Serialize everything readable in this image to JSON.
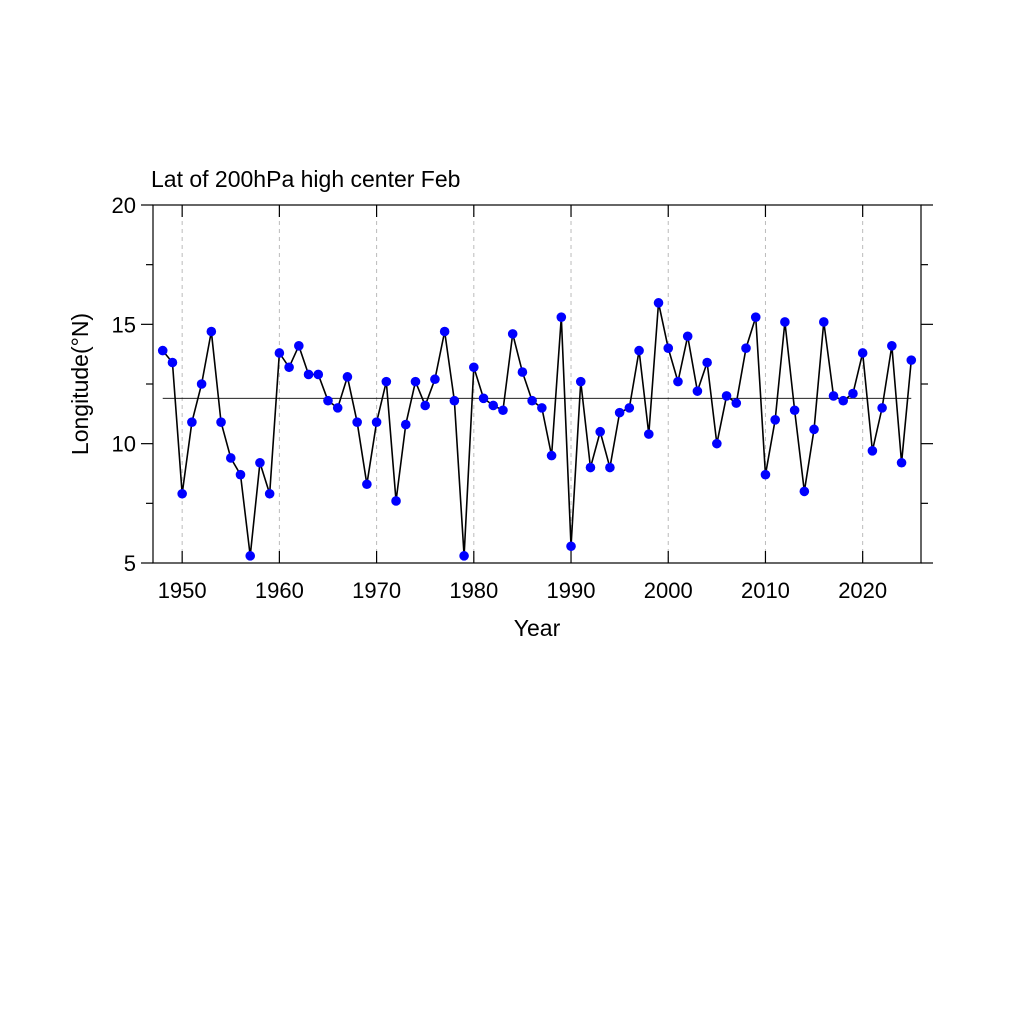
{
  "chart_data": {
    "type": "line",
    "title": "Lat of 200hPa high center Feb",
    "xlabel": "Year",
    "ylabel": "Longitude(°N)",
    "xlim": [
      1947,
      2026
    ],
    "ylim": [
      5,
      20
    ],
    "x_ticks": [
      1950,
      1960,
      1970,
      1980,
      1990,
      2000,
      2010,
      2020
    ],
    "y_ticks": [
      5,
      10,
      15,
      20
    ],
    "y_minor_ticks": [
      7.5,
      12.5,
      17.5
    ],
    "grid": "vertical dashed at x ticks",
    "reference_line": 11.9,
    "line_color": "#000000",
    "marker_color": "#0000ff",
    "series": [
      {
        "x": [
          1948,
          1949,
          1950,
          1951,
          1952,
          1953,
          1954,
          1955,
          1956,
          1957,
          1958,
          1959,
          1960,
          1961,
          1962,
          1963,
          1964,
          1965,
          1966,
          1967,
          1968,
          1969,
          1970,
          1971,
          1972,
          1973,
          1974,
          1975,
          1976,
          1977,
          1978,
          1979,
          1980,
          1981,
          1982,
          1983,
          1984,
          1985,
          1986,
          1987,
          1988,
          1989,
          1990,
          1991,
          1992,
          1993,
          1994,
          1995,
          1996,
          1997,
          1998,
          1999,
          2000,
          2001,
          2002,
          2003,
          2004,
          2005,
          2006,
          2007,
          2008,
          2009,
          2010,
          2011,
          2012,
          2013,
          2014,
          2015,
          2016,
          2017,
          2018,
          2019,
          2020,
          2021,
          2022,
          2023,
          2024,
          2025
        ],
        "values": [
          13.9,
          13.4,
          7.9,
          10.9,
          12.5,
          14.7,
          10.9,
          9.4,
          8.7,
          5.3,
          9.2,
          7.9,
          13.8,
          13.2,
          14.1,
          12.9,
          12.9,
          11.8,
          11.5,
          12.8,
          10.9,
          8.3,
          10.9,
          12.6,
          7.6,
          10.8,
          12.6,
          11.6,
          12.7,
          14.7,
          11.8,
          5.3,
          13.2,
          11.9,
          11.6,
          11.4,
          14.6,
          13.0,
          11.8,
          11.5,
          9.5,
          15.3,
          5.7,
          12.6,
          9.0,
          10.5,
          9.0,
          11.3,
          11.5,
          13.9,
          10.4,
          15.9,
          14.0,
          12.6,
          14.5,
          12.2,
          13.4,
          10.0,
          12.0,
          11.7,
          14.0,
          15.3,
          8.7,
          11.0,
          15.1,
          11.4,
          8.0,
          10.6,
          15.1,
          12.0,
          11.8,
          12.1,
          13.8,
          9.7,
          11.5,
          14.1,
          9.2,
          13.5
        ]
      }
    ]
  }
}
